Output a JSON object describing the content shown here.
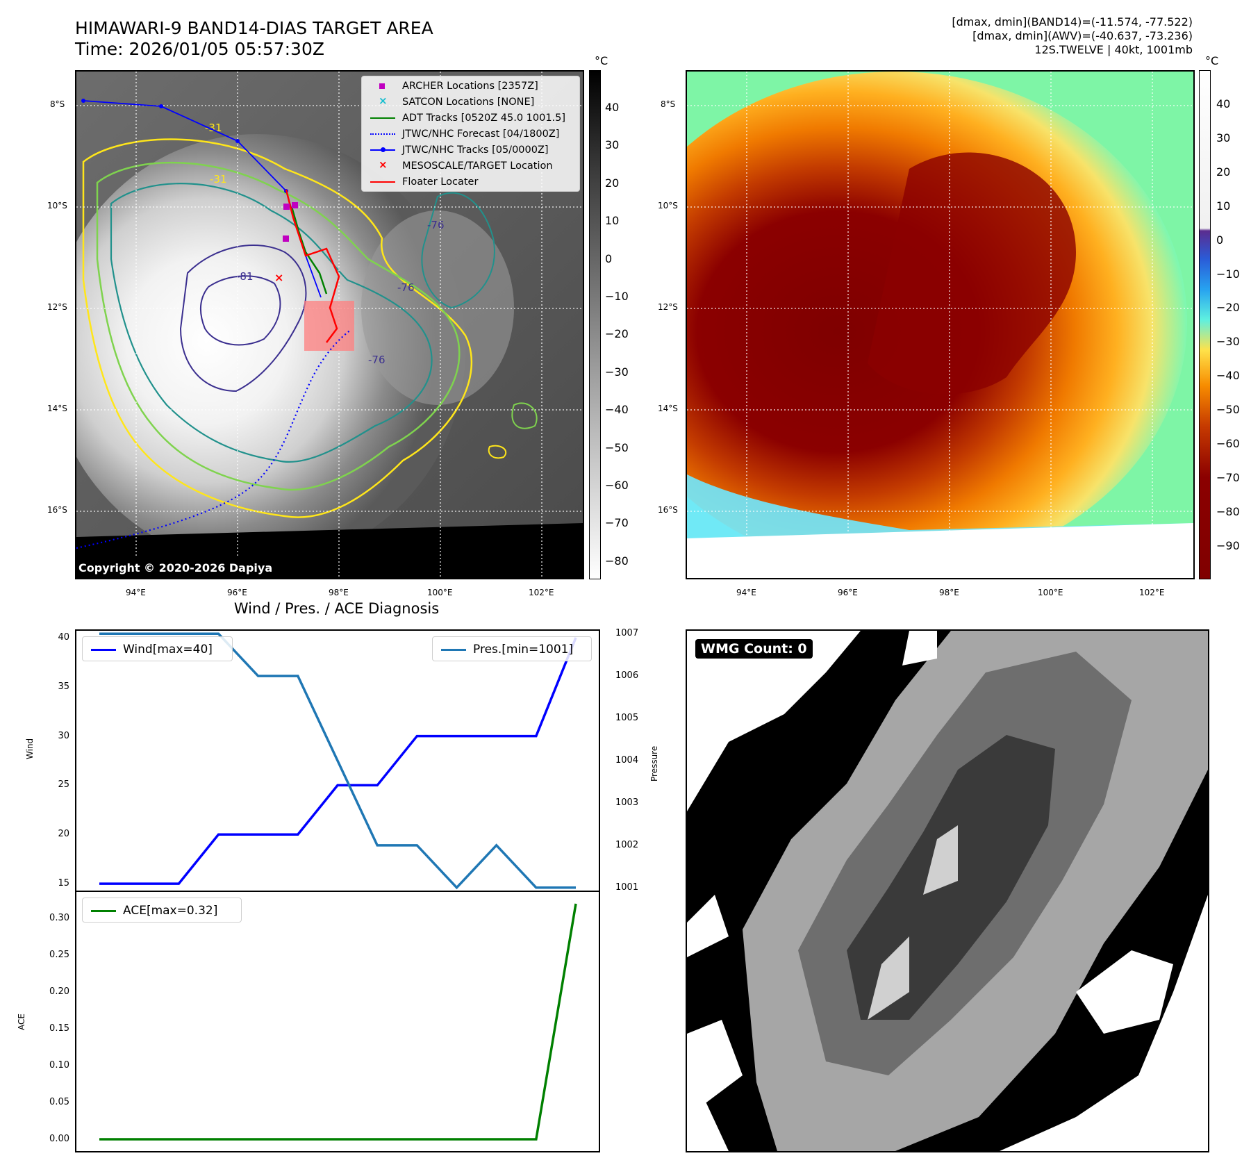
{
  "header": {
    "title_line1": "HIMAWARI-9 BAND14-DIAS TARGET AREA",
    "title_line2": "Time: 2026/01/05 05:57:30Z",
    "right_line1": "[dmax, dmin](BAND14)=(-11.574, -77.522)",
    "right_line2": "[dmax, dmin](AWV)=(-40.637, -73.236)",
    "right_line3": "12S.TWELVE | 40kt, 1001mb"
  },
  "ir_panel": {
    "lat_labels": [
      "8°S",
      "10°S",
      "12°S",
      "14°S",
      "16°S"
    ],
    "lon_labels": [
      "94°E",
      "96°E",
      "98°E",
      "100°E",
      "102°E"
    ],
    "copyright": "Copyright © 2020-2026 Dapiya",
    "contour_labels": [
      "-81",
      "-76",
      "-76",
      "-76",
      "-31",
      "-31"
    ],
    "legend": [
      {
        "label": "ARCHER Locations [2357Z]",
        "color": "#c000c0"
      },
      {
        "label": "SATCON Locations [NONE]",
        "color": "#17becf"
      },
      {
        "label": "ADT Tracks [0520Z 45.0 1001.5]",
        "color": "#008000"
      },
      {
        "label": "JTWC/NHC Forecast [04/1800Z]",
        "color": "#0000ff"
      },
      {
        "label": "JTWC/NHC Tracks [05/0000Z]",
        "color": "#0000ff"
      },
      {
        "label": "MESOSCALE/TARGET Location",
        "color": "#ff0000"
      },
      {
        "label": "Floater Locater",
        "color": "#ff0000"
      }
    ],
    "colorbar": {
      "unit": "°C",
      "ticks": [
        "40",
        "30",
        "20",
        "10",
        "0",
        "−10",
        "−20",
        "−30",
        "−40",
        "−50",
        "−60",
        "−70",
        "−80"
      ]
    }
  },
  "awv_panel": {
    "lat_labels": [
      "8°S",
      "10°S",
      "12°S",
      "14°S",
      "16°S"
    ],
    "lon_labels": [
      "94°E",
      "96°E",
      "98°E",
      "100°E",
      "102°E"
    ],
    "colorbar": {
      "unit": "°C",
      "ticks": [
        "40",
        "30",
        "20",
        "10",
        "0",
        "−10",
        "−20",
        "−30",
        "−40",
        "−50",
        "−60",
        "−70",
        "−80",
        "−90"
      ]
    }
  },
  "diagnosis_title": "Wind / Pres. / ACE Diagnosis",
  "wmg": {
    "label": "WMG Count: 0"
  },
  "chart_data": [
    {
      "type": "line",
      "title": "Wind / Pres. / ACE Diagnosis",
      "x": [
        1,
        2,
        3,
        4,
        5,
        6,
        7,
        8,
        9,
        10,
        11,
        12,
        13
      ],
      "ylabel": "Wind",
      "ylim": [
        14.3,
        40.7
      ],
      "y_ticks": [
        "15",
        "20",
        "25",
        "30",
        "35",
        "40"
      ],
      "y2label": "Pressure",
      "y2lim": [
        1000.93,
        1007.07
      ],
      "y2_ticks": [
        "1001",
        "1002",
        "1003",
        "1004",
        "1005",
        "1006",
        "1007"
      ],
      "series": [
        {
          "name": "Wind[max=40]",
          "axis": "left",
          "color": "#0000ff",
          "values": [
            15,
            15,
            15,
            20,
            20,
            20,
            25,
            25,
            30,
            30,
            30,
            30,
            40
          ]
        },
        {
          "name": "Pres.[min=1001]",
          "axis": "right",
          "color": "#1f77b4",
          "values": [
            1007,
            1007,
            1007,
            1007,
            1006,
            1006,
            1004,
            1002,
            1002,
            1001,
            1002,
            1001,
            1001
          ]
        }
      ],
      "legend": [
        "top-left",
        "top-right"
      ]
    },
    {
      "type": "line",
      "x": [
        1,
        2,
        3,
        4,
        5,
        6,
        7,
        8,
        9,
        10,
        11,
        12,
        13
      ],
      "ylabel": "ACE",
      "ylim": [
        -0.016,
        0.336
      ],
      "y_ticks": [
        "0.00",
        "0.05",
        "0.10",
        "0.15",
        "0.20",
        "0.25",
        "0.30"
      ],
      "series": [
        {
          "name": "ACE[max=0.32]",
          "color": "#008000",
          "values": [
            0,
            0,
            0,
            0,
            0,
            0,
            0,
            0,
            0,
            0,
            0,
            0,
            0.32
          ]
        }
      ],
      "legend": "top-left"
    }
  ]
}
